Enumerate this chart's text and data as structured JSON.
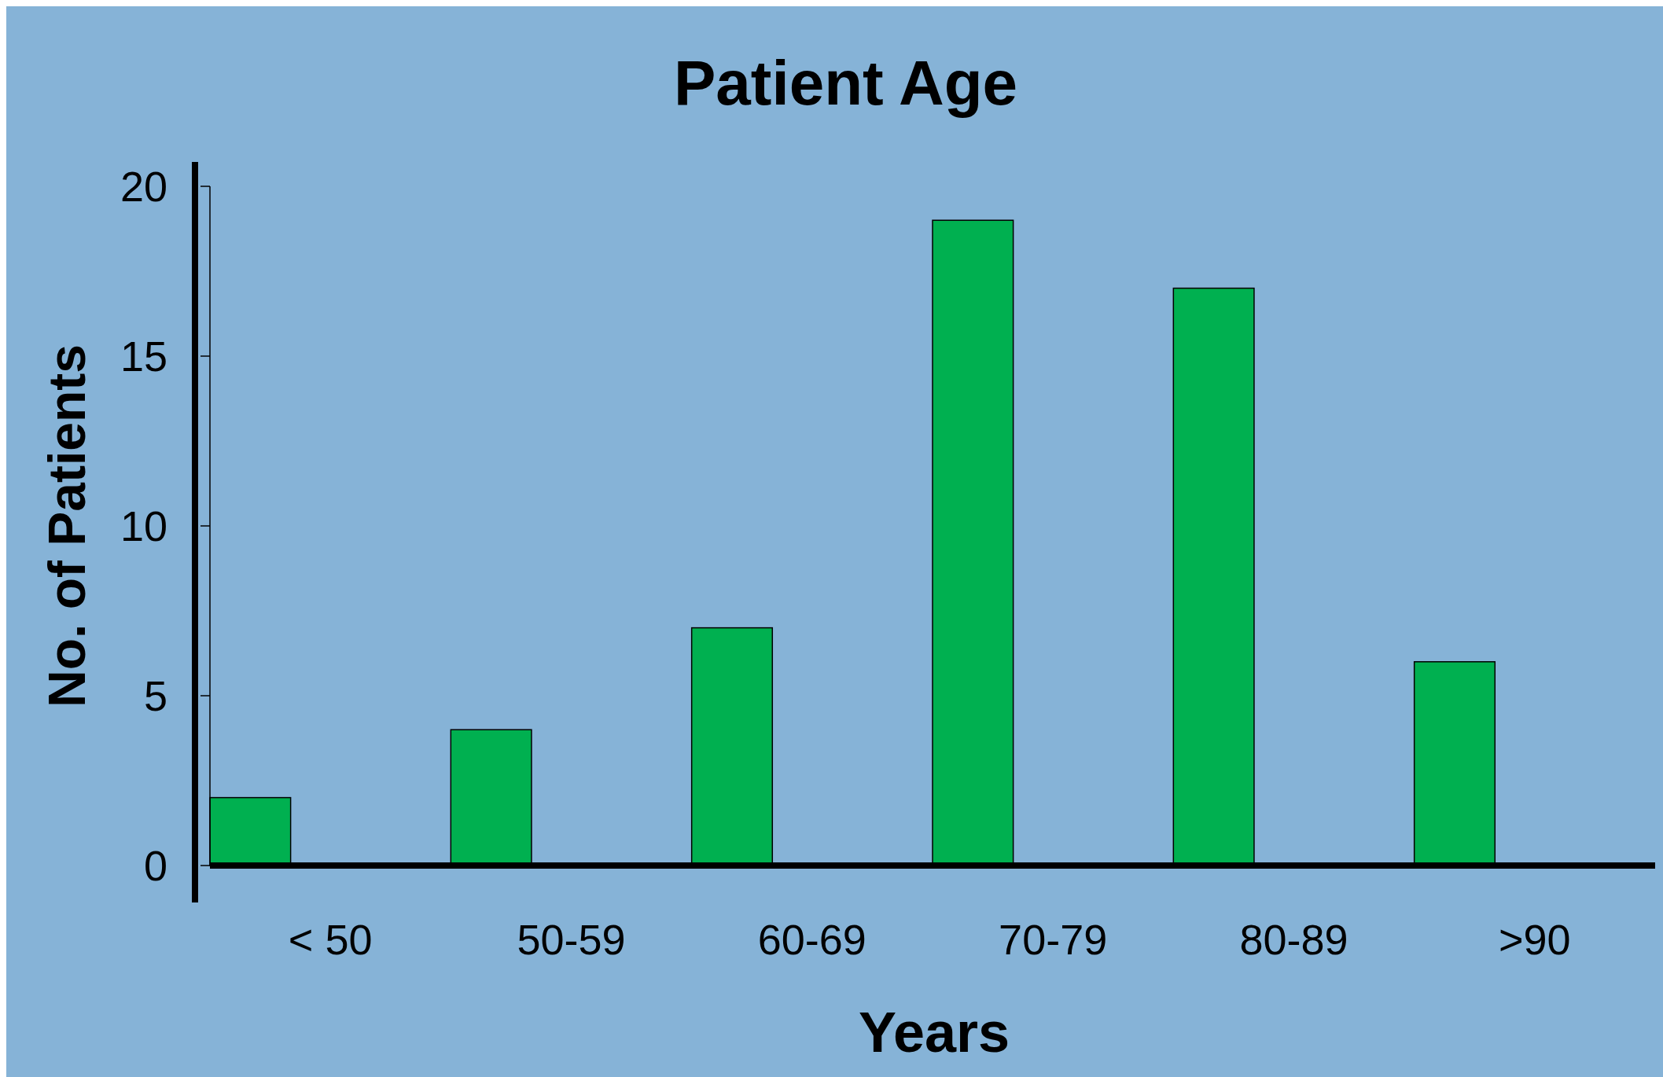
{
  "chart_data": {
    "type": "bar",
    "title": "Patient Age",
    "xlabel": "Years",
    "ylabel": "No. of Patients",
    "categories": [
      "< 50",
      "50-59",
      "60-69",
      "70-79",
      "80-89",
      ">90"
    ],
    "values": [
      2,
      4,
      7,
      19,
      17,
      6
    ],
    "color": "#00b050",
    "ylim": [
      0,
      20
    ],
    "yticks": [
      0,
      5,
      10,
      15,
      20
    ],
    "grid": false
  }
}
